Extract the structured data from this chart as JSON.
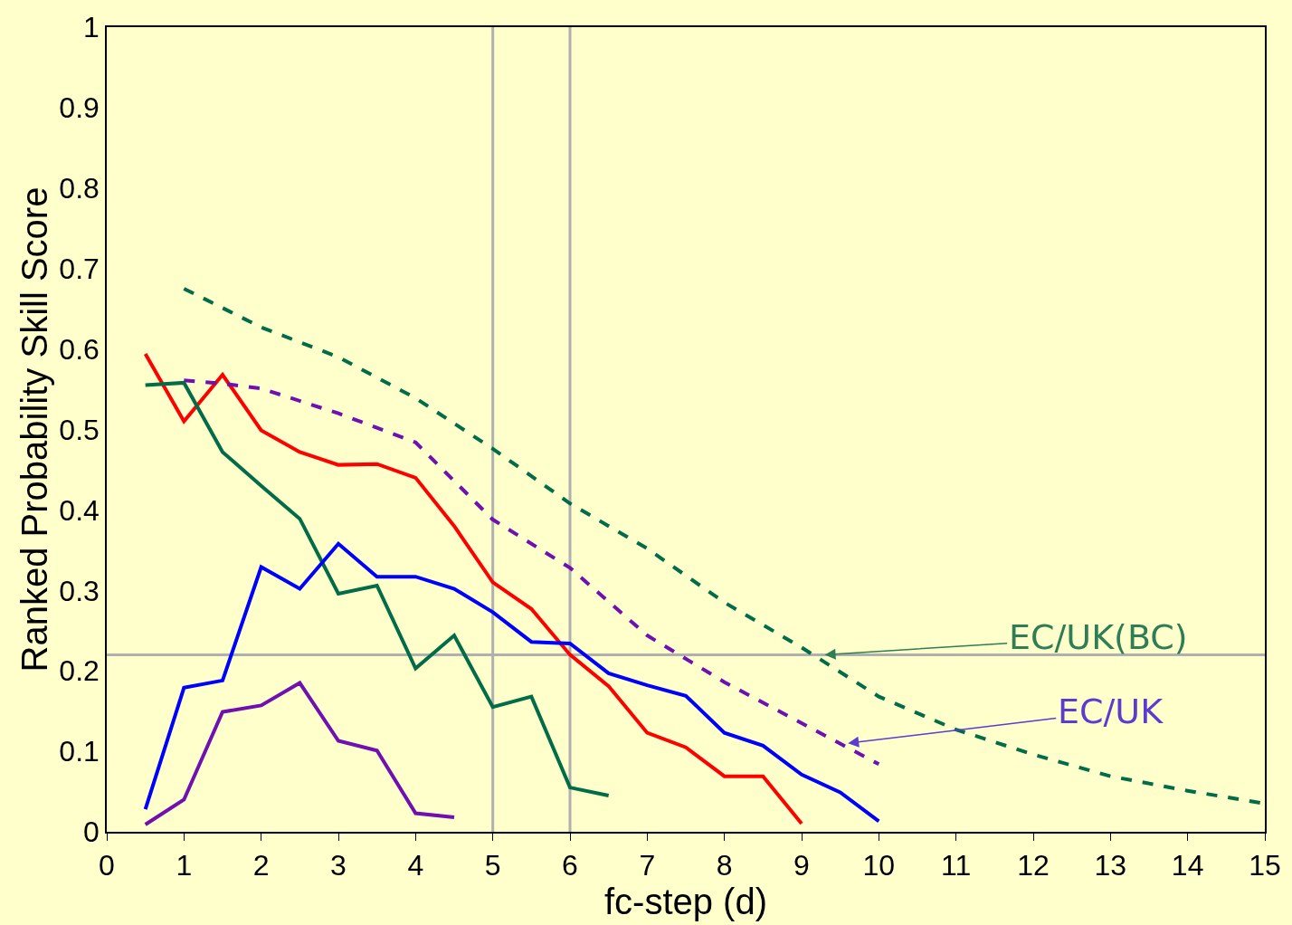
{
  "chart_data": {
    "type": "line",
    "xlabel": "fc-step (d)",
    "ylabel": "Ranked Probability Skill Score",
    "xlim": [
      0,
      15
    ],
    "xticks": [
      0,
      1,
      2,
      3,
      4,
      5,
      6,
      7,
      8,
      9,
      10,
      11,
      12,
      13,
      14,
      15
    ],
    "ylim": [
      0,
      1
    ],
    "yticks": [
      0,
      0.1,
      0.2,
      0.3,
      0.4,
      0.5,
      0.6,
      0.7,
      0.8,
      0.9,
      1
    ],
    "grid": false,
    "marker": "none",
    "series": [
      {
        "color": "#ff0000",
        "line_style": "solid",
        "x": [
          0.5,
          1,
          1.5,
          2,
          2.5,
          3,
          3.5,
          4,
          4.5,
          5,
          5.5,
          6,
          6.5,
          7,
          7.5,
          8,
          8.5,
          9
        ],
        "values": [
          0.594,
          0.51,
          0.568,
          0.499,
          0.472,
          0.456,
          0.457,
          0.44,
          0.38,
          0.31,
          0.277,
          0.22,
          0.181,
          0.123,
          0.105,
          0.069,
          0.069,
          0.01
        ]
      },
      {
        "color": "#006c48",
        "line_style": "solid",
        "x": [
          0.5,
          1,
          1.5,
          2,
          2.5,
          3,
          3.5,
          4,
          4.5,
          5,
          5.5,
          6,
          6.5
        ],
        "values": [
          0.555,
          0.558,
          0.472,
          0.43,
          0.389,
          0.296,
          0.306,
          0.203,
          0.244,
          0.155,
          0.168,
          0.055,
          0.045
        ]
      },
      {
        "color": "#0000ff",
        "line_style": "solid",
        "x": [
          0.5,
          1,
          1.5,
          2,
          2.5,
          3,
          3.5,
          4,
          4.5,
          5,
          5.5,
          6,
          6.5,
          7,
          7.5,
          8,
          8.5,
          9,
          9.5,
          10
        ],
        "values": [
          0.028,
          0.179,
          0.188,
          0.329,
          0.302,
          0.358,
          0.317,
          0.317,
          0.302,
          0.273,
          0.236,
          0.234,
          0.197,
          0.182,
          0.169,
          0.123,
          0.107,
          0.071,
          0.049,
          0.013
        ]
      },
      {
        "color": "#7010b0",
        "line_style": "solid",
        "x": [
          0.5,
          1,
          1.5,
          2,
          2.5,
          3,
          3.5,
          4,
          4.5
        ],
        "values": [
          0.009,
          0.04,
          0.149,
          0.157,
          0.185,
          0.113,
          0.101,
          0.023,
          0.018
        ]
      },
      {
        "color": "#006c48",
        "line_style": "dashed",
        "x": [
          1,
          2,
          3,
          4,
          5,
          6,
          7,
          8,
          9,
          10,
          11,
          12,
          13,
          14,
          15
        ],
        "values": [
          0.675,
          0.627,
          0.59,
          0.539,
          0.476,
          0.408,
          0.352,
          0.285,
          0.229,
          0.168,
          0.127,
          0.096,
          0.069,
          0.051,
          0.035
        ]
      },
      {
        "color": "#7010b0",
        "line_style": "dashed",
        "x": [
          1,
          1.5,
          2,
          3,
          4,
          5,
          6,
          7,
          8,
          9,
          10
        ],
        "values": [
          0.561,
          0.557,
          0.551,
          0.52,
          0.484,
          0.388,
          0.328,
          0.244,
          0.186,
          0.135,
          0.084
        ]
      }
    ],
    "ref_lines": [
      {
        "axis": "x",
        "value": 5,
        "color": "#b0b0b0"
      },
      {
        "axis": "x",
        "value": 6,
        "color": "#b0b0b0"
      },
      {
        "axis": "y",
        "value": 0.22,
        "color": "#b0b0b0"
      }
    ],
    "annotations": [
      {
        "text": "EC/UK(BC)",
        "x": 9.3,
        "y": 0.22
      },
      {
        "text": "EC/UK",
        "x": 9.6,
        "y": 0.11
      }
    ]
  }
}
